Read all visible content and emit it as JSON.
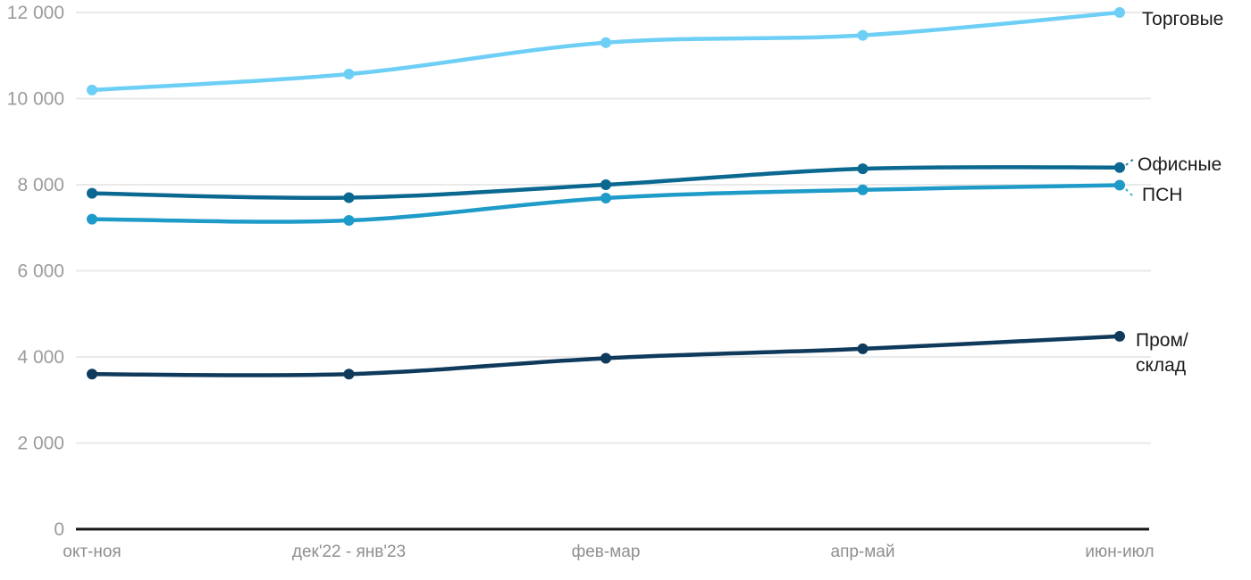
{
  "chart_data": {
    "type": "line",
    "title": "",
    "xlabel": "",
    "ylabel": "",
    "categories": [
      "окт-ноя",
      "дек'22 - янв'23",
      "фев-мар",
      "апр-май",
      "июн-июл"
    ],
    "series": [
      {
        "name": "Торговые",
        "label_lines": [
          "Торговые"
        ],
        "color": "#6dcff6",
        "values": [
          10200,
          10570,
          11300,
          11470,
          12000
        ]
      },
      {
        "name": "Офисные",
        "label_lines": [
          "Офисные"
        ],
        "color": "#0b6890",
        "values": [
          7800,
          7700,
          8000,
          8370,
          8400
        ]
      },
      {
        "name": "ПСН",
        "label_lines": [
          "ПСН"
        ],
        "color": "#1e9bc8",
        "values": [
          7200,
          7170,
          7690,
          7880,
          7990
        ]
      },
      {
        "name": "Пром/склад",
        "label_lines": [
          "Пром/",
          "склад"
        ],
        "color": "#0f3a5c",
        "values": [
          3600,
          3600,
          3970,
          4190,
          4480
        ]
      }
    ],
    "ylim": [
      0,
      12000
    ],
    "yticks": [
      0,
      2000,
      4000,
      6000,
      8000,
      10000,
      12000
    ],
    "ytick_labels": [
      "0",
      "2 000",
      "4 000",
      "6 000",
      "8 000",
      "10 000",
      "12 000"
    ],
    "grid": true,
    "legend_position": "right-end-labels"
  },
  "colors": {
    "background": "#ffffff",
    "grid": "#e9e9e9",
    "axis": "#1a1a1a",
    "ytick_text": "#9b9b9b",
    "xtick_text": "#8f8f8f",
    "series_label_text": "#1a1a1a"
  }
}
